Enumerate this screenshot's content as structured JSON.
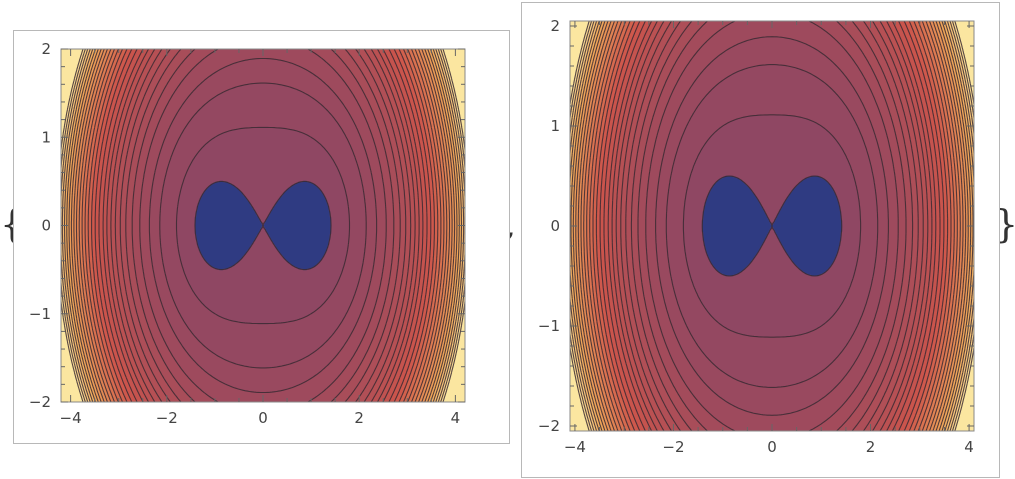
{
  "output": {
    "open_brace": "{",
    "separator": ",",
    "close_brace": "}"
  },
  "chart_data": [
    {
      "type": "contour",
      "function": "(x^2 + y^2)^2 - 2*(x^2 - y^2)",
      "xlim": [
        -4.2,
        4.2
      ],
      "ylim": [
        -2,
        2
      ],
      "xticks": [
        "-4",
        "-2",
        "0",
        "2",
        "4"
      ],
      "yticks": [
        "-2",
        "-1",
        "0",
        "1",
        "2"
      ],
      "contour_levels": [
        0,
        4,
        12,
        20,
        30,
        40,
        50,
        60,
        70,
        80,
        90,
        100,
        112,
        124,
        136,
        148,
        160,
        172,
        184,
        196,
        208,
        220,
        232,
        244,
        256,
        268,
        280,
        292,
        304
      ],
      "colors": {
        "low": "#2f3b82",
        "mid": "#8f4763",
        "high": "#f2a95a",
        "top": "#fbe6a0",
        "line": "#3a2a33"
      }
    },
    {
      "type": "contour",
      "function": "(x^2 + y^2)^2 - 2*(x^2 - y^2)",
      "xlim": [
        -4.1,
        4.1
      ],
      "ylim": [
        -2.05,
        2.05
      ],
      "xticks": [
        "-4",
        "-2",
        "0",
        "2",
        "4"
      ],
      "yticks": [
        "-2",
        "-1",
        "0",
        "1",
        "2"
      ],
      "contour_levels": [
        0,
        4,
        12,
        20,
        30,
        40,
        50,
        60,
        70,
        80,
        90,
        100,
        112,
        124,
        136,
        148,
        160,
        172,
        184,
        196,
        208,
        220,
        232,
        244,
        256,
        268,
        280,
        292,
        304
      ],
      "colors": {
        "low": "#2f3b82",
        "mid": "#8f4763",
        "high": "#f2a95a",
        "top": "#fbe6a0",
        "line": "#3a2a33"
      }
    }
  ]
}
